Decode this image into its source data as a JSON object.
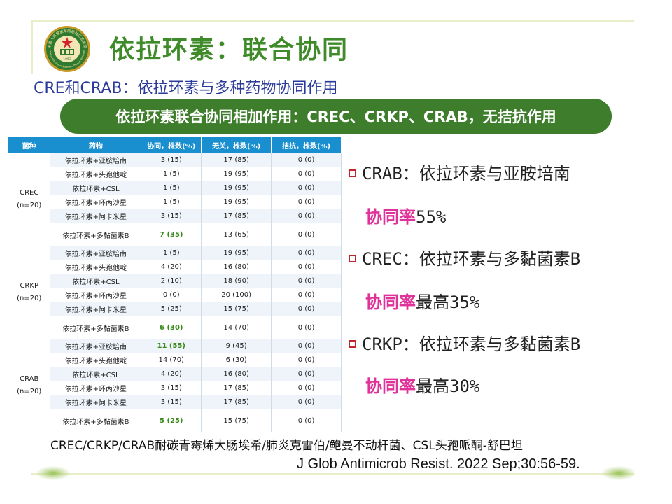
{
  "title": "依拉环素：联合协同",
  "subtitle": "CRE和CRAB：依拉环素与多种药物协同作用",
  "banner": "依拉环素联合协同相加作用：CREC、CRKP、CRAB，无拮抗作用",
  "table": {
    "headers": [
      "菌种",
      "药物",
      "协同，株数(%)",
      "无关，株数(%)",
      "拮抗，株数(%)"
    ],
    "groups": [
      {
        "name": "CREC",
        "n": "(n=20)",
        "rows": [
          {
            "drug": "依拉环素+亚胺培南",
            "syn": "3 (15)",
            "ind": "17 (85)",
            "ant": "0 (0)"
          },
          {
            "drug": "依拉环素+头孢他啶",
            "syn": "1 (5)",
            "ind": "19 (95)",
            "ant": "0 (0)"
          },
          {
            "drug": "依拉环素+CSL",
            "syn": "1 (5)",
            "ind": "19 (95)",
            "ant": "0 (0)"
          },
          {
            "drug": "依拉环素+环丙沙星",
            "syn": "1 (5)",
            "ind": "19 (95)",
            "ant": "0 (0)"
          },
          {
            "drug": "依拉环素+阿卡米星",
            "syn": "3 (15)",
            "ind": "17 (85)",
            "ant": "0 (0)"
          },
          {
            "drug": "依拉环素+多黏菌素B",
            "syn": "7 (35)",
            "ind": "13 (65)",
            "ant": "0 (0)"
          }
        ]
      },
      {
        "name": "CRKP",
        "n": "(n=20)",
        "rows": [
          {
            "drug": "依拉环素+亚胺培南",
            "syn": "1 (5)",
            "ind": "19 (95)",
            "ant": "0 (0)"
          },
          {
            "drug": "依拉环素+头孢他啶",
            "syn": "4 (20)",
            "ind": "16 (80)",
            "ant": "0 (0)"
          },
          {
            "drug": "依拉环素+CSL",
            "syn": "2 (10)",
            "ind": "18 (90)",
            "ant": "0 (0)"
          },
          {
            "drug": "依拉环素+环丙沙星",
            "syn": "0 (0)",
            "ind": "20 (100)",
            "ant": "0 (0)"
          },
          {
            "drug": "依拉环素+阿卡米星",
            "syn": "5 (25)",
            "ind": "15 (75)",
            "ant": "0 (0)"
          },
          {
            "drug": "依拉环素+多黏菌素B",
            "syn": "6 (30)",
            "ind": "14 (70)",
            "ant": "0 (0)"
          }
        ]
      },
      {
        "name": "CRAB",
        "n": "(n=20)",
        "rows": [
          {
            "drug": "依拉环素+亚胺培南",
            "syn": "11 (55)",
            "ind": "9 (45)",
            "ant": "0 (0)"
          },
          {
            "drug": "依拉环素+头孢他啶",
            "syn": "14 (70)",
            "ind": "6 (30)",
            "ant": "0 (0)"
          },
          {
            "drug": "依拉环素+CSL",
            "syn": "4 (20)",
            "ind": "16 (80)",
            "ant": "0 (0)"
          },
          {
            "drug": "依拉环素+环丙沙星",
            "syn": "3 (15)",
            "ind": "17 (85)",
            "ant": "0 (0)"
          },
          {
            "drug": "依拉环素+阿卡米星",
            "syn": "3 (15)",
            "ind": "17 (85)",
            "ant": "0 (0)"
          },
          {
            "drug": "依拉环素+多黏菌素B",
            "syn": "5 (25)",
            "ind": "15 (75)",
            "ant": "0 (0)"
          }
        ]
      }
    ]
  },
  "bullets": [
    {
      "text": "CRAB：依拉环素与亚胺培南",
      "rate_label": "协同率",
      "rate_value": "55%"
    },
    {
      "text": "CREC：依拉环素与多黏菌素B",
      "rate_label": "协同率",
      "rate_value": "最高35%"
    },
    {
      "text": "CRKP：依拉环素与多黏菌素B",
      "rate_label": "协同率",
      "rate_value": "最高30%"
    }
  ],
  "footnote": "CREC/CRKP/CRAB耐碳青霉烯大肠埃希/肺炎克雷伯/鲍曼不动杆菌、CSL头孢哌酮-舒巴坦",
  "citation": "J Glob Antimicrob Resist. 2022 Sep;30:56-59.",
  "logo": {
    "top_text": "中国人民解放军南部战区总医院",
    "bottom_text": "General Hospital of Southern Theatre Command",
    "year": "1953"
  },
  "colors": {
    "title": "#3f8b2a",
    "subtitle": "#2a3a9a",
    "banner": "#3e7d2b",
    "table_header": "#1a8fd0",
    "rate_label": "#e0339a",
    "highlight": "#3a8a1e",
    "bullet_square": "#c0272d"
  }
}
